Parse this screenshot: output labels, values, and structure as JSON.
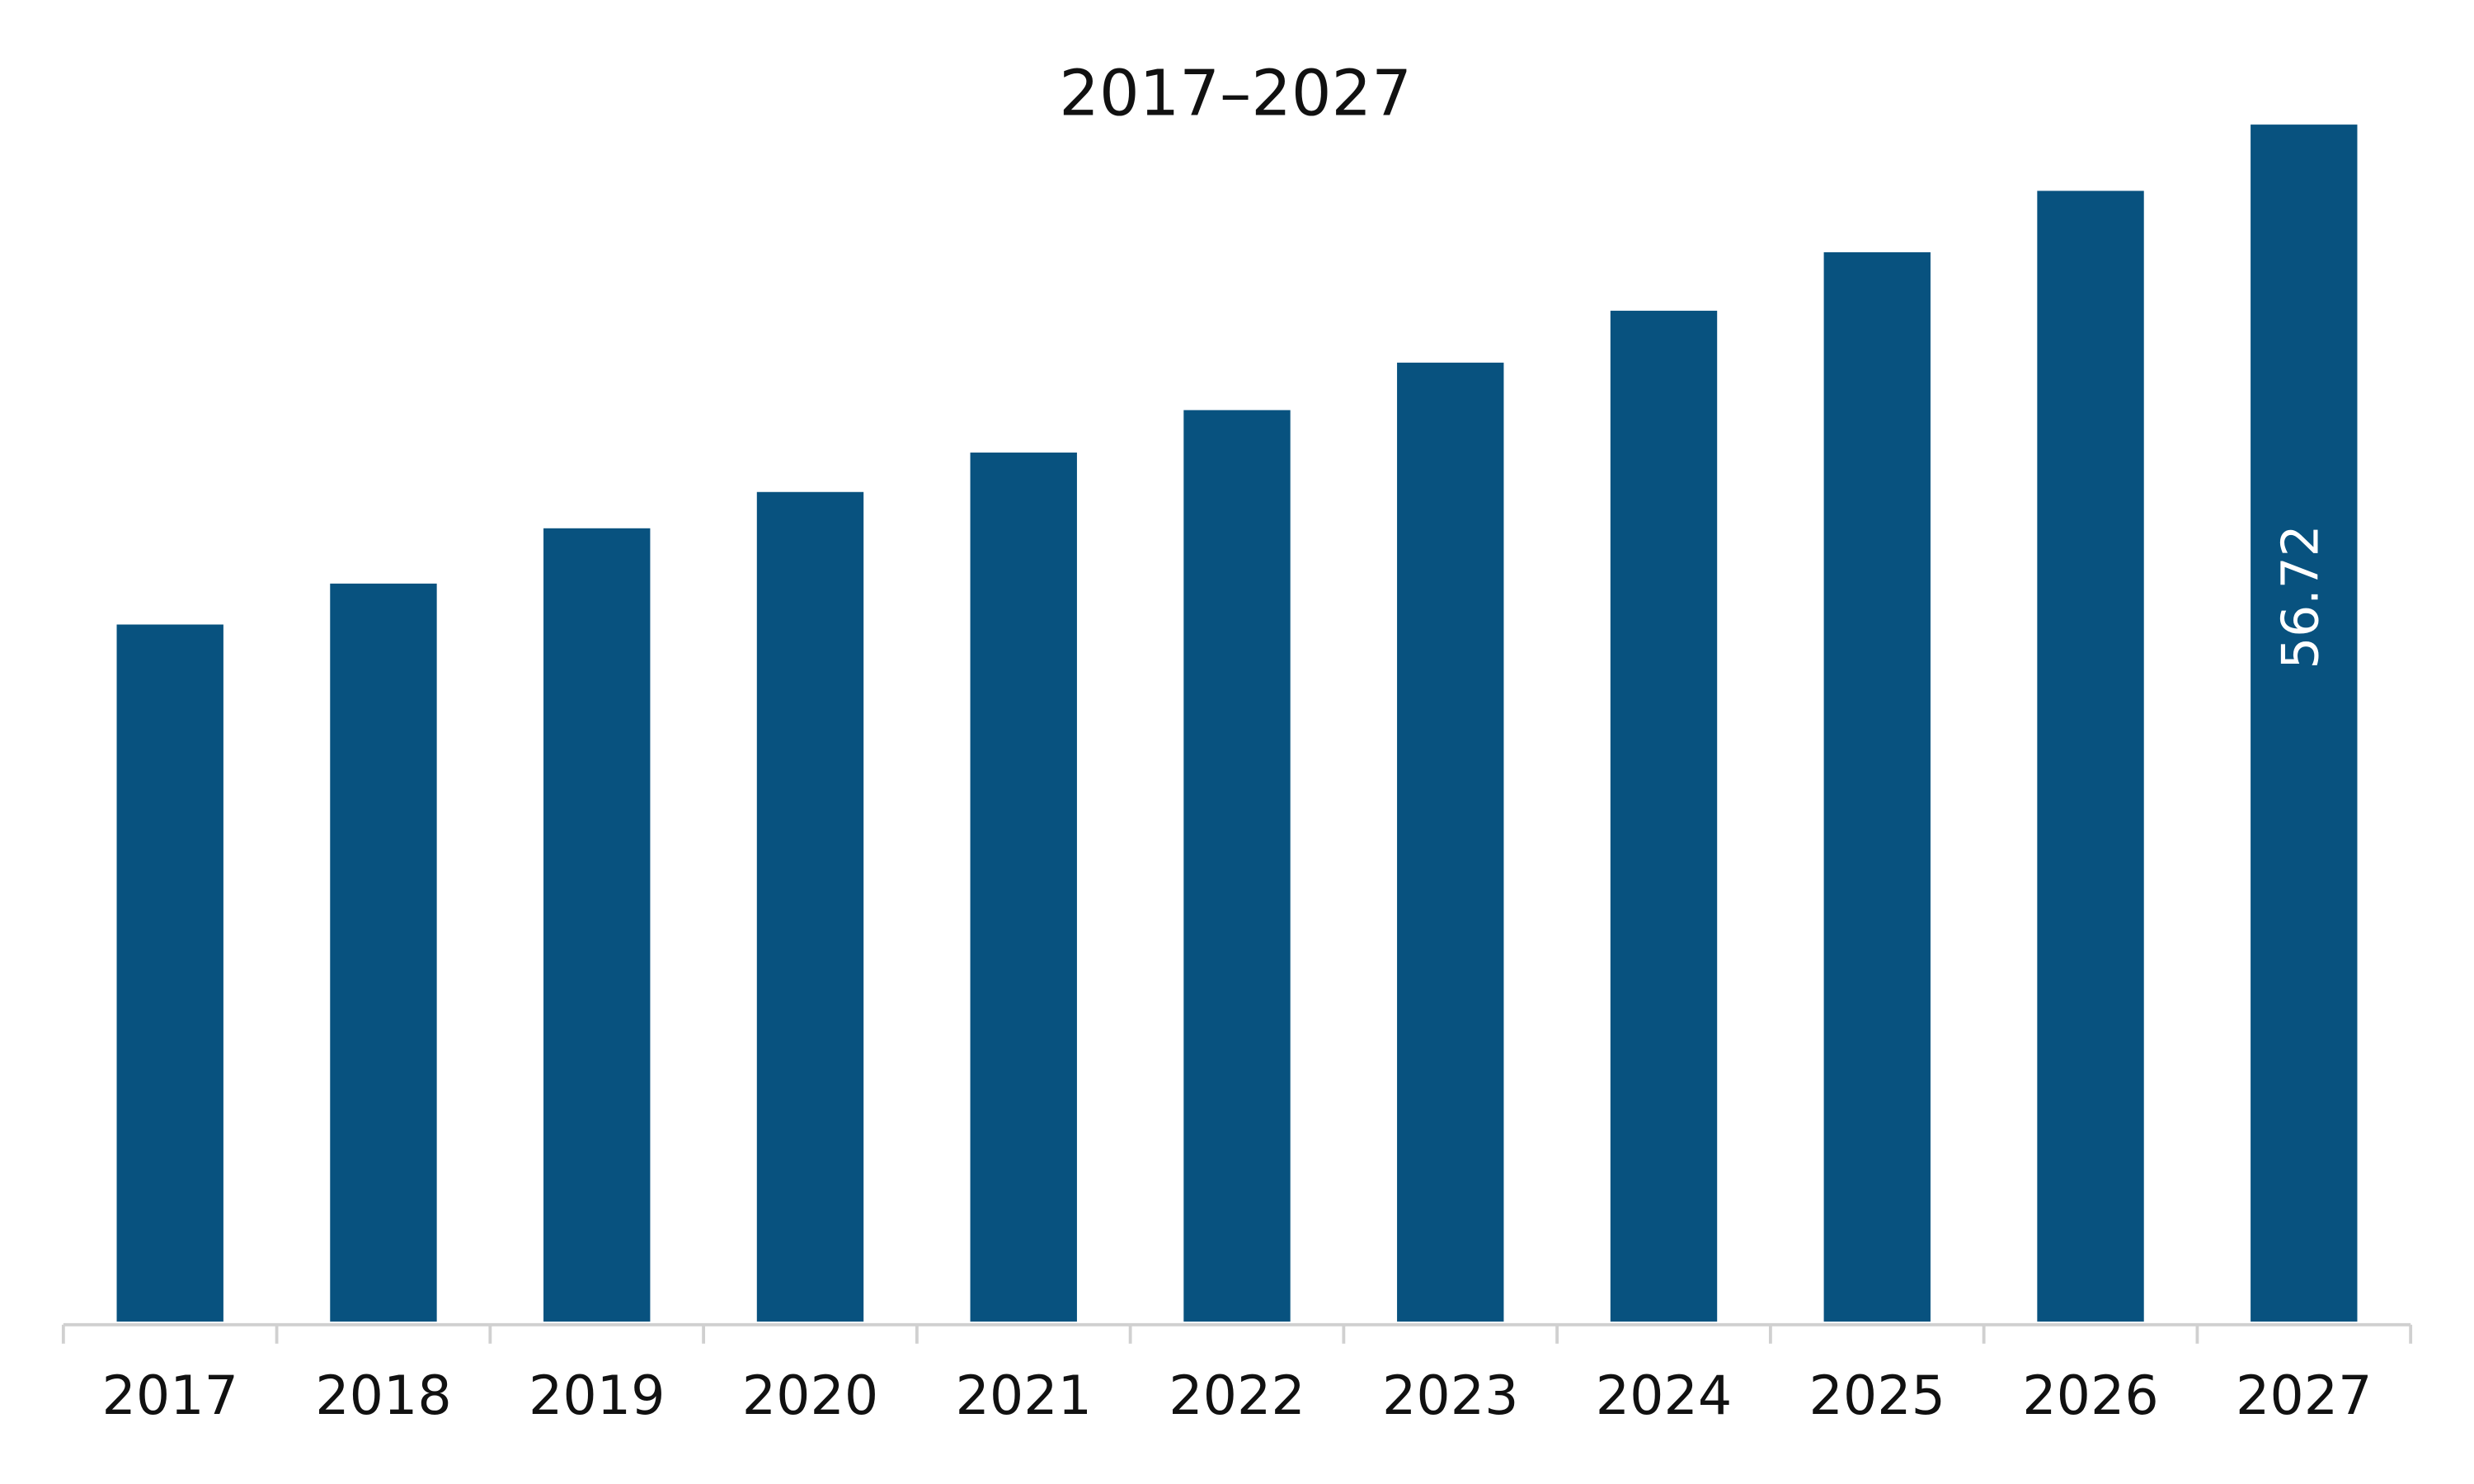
{
  "chart_data": {
    "type": "bar",
    "title": "2017–2027",
    "categories": [
      "2017",
      "2018",
      "2019",
      "2020",
      "2021",
      "2022",
      "2023",
      "2024",
      "2025",
      "2026",
      "2027"
    ],
    "values": [
      33.03,
      34.97,
      37.59,
      39.31,
      41.18,
      43.19,
      45.44,
      47.9,
      50.67,
      53.58,
      56.72
    ],
    "value_labels": [
      null,
      null,
      null,
      null,
      null,
      null,
      null,
      null,
      null,
      null,
      "56.72"
    ],
    "color": "#08527f"
  }
}
